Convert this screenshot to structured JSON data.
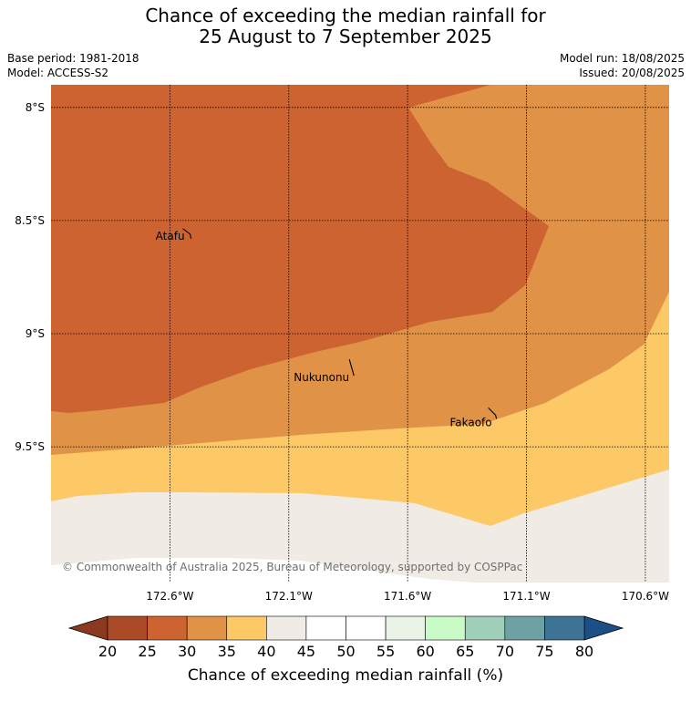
{
  "title": {
    "line1": "Chance of exceeding the median rainfall for",
    "line2": "25 August to 7 September 2025"
  },
  "meta": {
    "base_period": "Base period: 1981-2018",
    "model": "Model: ACCESS-S2",
    "model_run": "Model run: 18/08/2025",
    "issued": "Issued: 20/08/2025"
  },
  "map": {
    "lon_range": [
      -173.1,
      -170.5
    ],
    "lat_range": [
      -10.1,
      -7.9
    ],
    "lat_ticks": [
      {
        "value": -8.0,
        "label": "8°S"
      },
      {
        "value": -8.5,
        "label": "8.5°S"
      },
      {
        "value": -9.0,
        "label": "9°S"
      },
      {
        "value": -9.5,
        "label": "9.5°S"
      }
    ],
    "lon_ticks": [
      {
        "value": -172.6,
        "label": "172.6°W"
      },
      {
        "value": -172.1,
        "label": "172.1°W"
      },
      {
        "value": -171.6,
        "label": "171.6°W"
      },
      {
        "value": -171.1,
        "label": "171.1°W"
      },
      {
        "value": -170.6,
        "label": "170.6°W"
      }
    ],
    "gridlines": "dotted",
    "places": [
      {
        "name": "Atafu",
        "lon": -172.515,
        "lat": -8.56
      },
      {
        "name": "Nukunonu",
        "lon": -171.83,
        "lat": -9.17
      },
      {
        "name": "Fakaofo",
        "lon": -171.23,
        "lat": -9.36
      }
    ],
    "copyright": "© Commonwealth of Australia 2025, Bureau of Meteorology, supported by COSPPac",
    "regions": [
      {
        "category": "25-30",
        "color": "#cc6331"
      },
      {
        "category": "30-35",
        "color": "#e09346"
      },
      {
        "category": "35-40",
        "color": "#fdc966"
      },
      {
        "category": "40-45",
        "color": "#f0ebe5"
      }
    ]
  },
  "colorbar": {
    "title": "Chance of exceeding median rainfall (%)",
    "ticks": [
      "20",
      "25",
      "30",
      "35",
      "40",
      "45",
      "50",
      "55",
      "60",
      "65",
      "70",
      "75",
      "80"
    ],
    "colors": [
      "#aa4a27",
      "#cc6331",
      "#e09346",
      "#fdc966",
      "#f0ebe5",
      "#ffffff",
      "#ffffff",
      "#e9f4e6",
      "#c8fbc5",
      "#a0cfb9",
      "#6da1a3",
      "#3d7395"
    ],
    "under_color": "#8b3a1f",
    "over_color": "#1b4f86"
  }
}
